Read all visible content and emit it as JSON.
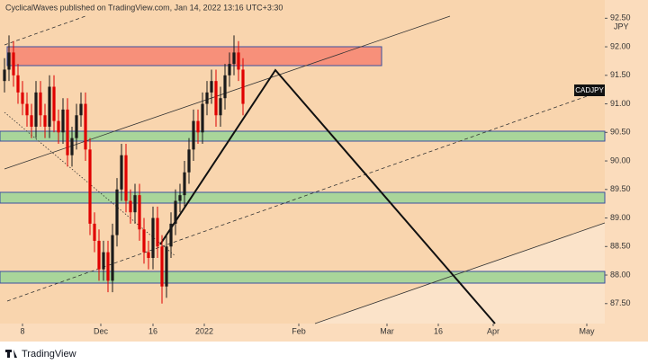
{
  "header": "CyclicalWaves published on TradingView.com, Jan 14, 2022 13:16 UTC+3:30",
  "footer": "TradingView",
  "chart_data": {
    "type": "candlestick",
    "symbol": "CADJPY",
    "currency": "JPY",
    "up_color": "#1a1a1a",
    "down_color": "#e00000",
    "x": [
      -4,
      -3,
      -2,
      -1,
      0,
      1,
      2,
      3,
      4,
      5,
      6,
      7,
      8,
      9,
      10,
      11,
      12,
      13,
      14,
      15,
      16,
      17,
      18,
      19,
      20,
      21,
      22,
      23,
      24,
      25,
      26,
      27,
      28,
      29,
      30,
      31,
      32,
      33,
      34,
      35,
      36,
      37,
      38,
      39,
      40,
      41,
      42,
      43,
      44,
      45,
      46,
      47,
      48,
      49
    ],
    "open": [
      91.4,
      91.6,
      91.9,
      91.5,
      91.2,
      91.0,
      90.8,
      90.6,
      91.2,
      90.8,
      90.6,
      91.3,
      90.7,
      90.5,
      90.9,
      90.1,
      90.4,
      90.8,
      91.0,
      90.2,
      88.9,
      88.6,
      88.1,
      88.4,
      87.9,
      88.7,
      89.5,
      90.1,
      89.3,
      89.1,
      89.4,
      88.8,
      88.4,
      88.3,
      89.0,
      88.5,
      87.8,
      88.5,
      88.9,
      89.3,
      89.4,
      89.8,
      90.2,
      90.7,
      90.5,
      91.0,
      91.2,
      91.4,
      90.8,
      91.1,
      91.5,
      91.7,
      91.9,
      91.6
    ],
    "high": [
      91.8,
      92.2,
      92.1,
      91.7,
      91.4,
      91.2,
      91.0,
      91.4,
      91.4,
      91.0,
      91.5,
      91.5,
      90.9,
      91.1,
      91.1,
      90.6,
      91.0,
      91.2,
      91.2,
      90.4,
      89.1,
      88.8,
      88.6,
      88.6,
      88.9,
      89.7,
      90.3,
      90.3,
      89.5,
      89.6,
      89.6,
      89.0,
      88.6,
      89.2,
      89.2,
      88.7,
      88.7,
      89.1,
      89.5,
      89.6,
      90.0,
      90.4,
      90.9,
      90.9,
      91.2,
      91.4,
      91.6,
      91.6,
      91.3,
      91.7,
      91.9,
      92.2,
      92.1,
      91.8
    ],
    "low": [
      91.2,
      91.4,
      91.3,
      91.0,
      90.8,
      90.6,
      90.4,
      90.4,
      90.6,
      90.4,
      90.4,
      90.5,
      90.3,
      90.3,
      89.9,
      89.9,
      90.2,
      90.6,
      90.0,
      88.7,
      88.4,
      87.9,
      87.9,
      87.7,
      87.7,
      88.5,
      89.3,
      89.1,
      88.9,
      88.9,
      88.6,
      88.2,
      88.1,
      88.1,
      88.3,
      87.5,
      87.6,
      88.3,
      88.7,
      89.1,
      89.2,
      89.6,
      90.0,
      90.3,
      90.3,
      90.8,
      91.0,
      90.6,
      90.6,
      90.9,
      91.3,
      91.5,
      91.4,
      90.8
    ],
    "close": [
      91.6,
      91.9,
      91.5,
      91.2,
      91.0,
      90.8,
      90.6,
      91.2,
      90.8,
      90.6,
      91.3,
      90.7,
      90.5,
      90.9,
      90.1,
      90.4,
      90.8,
      91.0,
      90.2,
      88.9,
      88.6,
      88.1,
      88.4,
      87.9,
      88.7,
      89.5,
      90.1,
      89.3,
      89.1,
      89.4,
      88.8,
      88.4,
      88.3,
      89.0,
      88.5,
      87.8,
      88.5,
      88.9,
      89.3,
      89.4,
      89.8,
      90.2,
      90.7,
      90.5,
      91.0,
      91.2,
      91.4,
      90.8,
      91.1,
      91.5,
      91.7,
      91.9,
      91.6,
      91.0
    ],
    "xlim": [
      -5,
      129.4
    ],
    "xticks": [
      {
        "value": 0,
        "label": "8"
      },
      {
        "value": 17.4,
        "label": "Dec"
      },
      {
        "value": 29,
        "label": "16"
      },
      {
        "value": 40.4,
        "label": "2022"
      },
      {
        "value": 61.4,
        "label": "Feb"
      },
      {
        "value": 81,
        "label": "Mar"
      },
      {
        "value": 92.4,
        "label": "16"
      },
      {
        "value": 104.6,
        "label": "Apr"
      },
      {
        "value": 125.4,
        "label": "May"
      }
    ],
    "ylim": [
      87.15,
      92.82
    ],
    "yticks": [
      {
        "value": 87.5,
        "label": "87.50"
      },
      {
        "value": 88,
        "label": "88.00"
      },
      {
        "value": 88.5,
        "label": "88.50"
      },
      {
        "value": 89,
        "label": "89.00"
      },
      {
        "value": 89.5,
        "label": "89.50"
      },
      {
        "value": 90,
        "label": "90.00"
      },
      {
        "value": 90.5,
        "label": "90.50"
      },
      {
        "value": 91,
        "label": "91.00"
      },
      {
        "value": 91.5,
        "label": "91.50"
      },
      {
        "value": 92,
        "label": "92.00"
      },
      {
        "value": 92.5,
        "label": "92.50"
      }
    ]
  }
}
